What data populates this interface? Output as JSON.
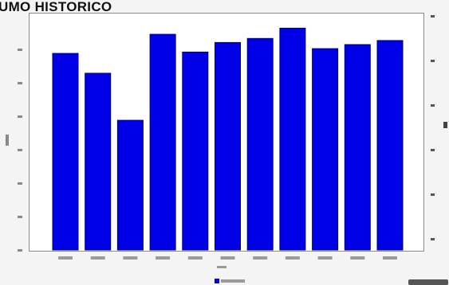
{
  "chart_data": {
    "type": "bar",
    "title": "UMO HISTORICO",
    "categories": [
      "",
      "",
      "",
      "",
      "",
      "",
      "",
      "",
      "",
      "",
      "",
      ""
    ],
    "values": [
      288,
      259,
      190,
      316,
      290,
      304,
      310,
      325,
      295,
      301,
      307,
      null
    ],
    "ylim": [
      0,
      350
    ],
    "xlabel": "",
    "ylabel": "",
    "grid": false,
    "legend": "bottom-center",
    "bar_color": "#0000e6"
  },
  "colors": {
    "bar": "#0000e6",
    "bar_edge": "#00007a",
    "background": "#f4f4f4"
  }
}
